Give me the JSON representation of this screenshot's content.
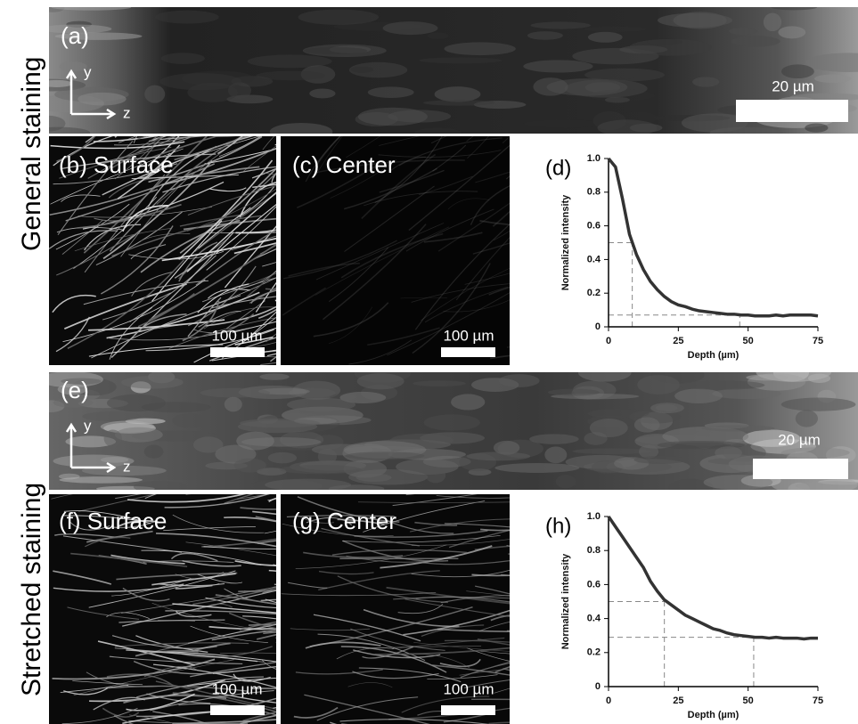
{
  "row_labels": [
    "General staining",
    "Stretched staining"
  ],
  "panels": {
    "a": {
      "label": "(a)",
      "axis_y": "y",
      "axis_z": "z",
      "scale_bar": "20 µm"
    },
    "b": {
      "label": "(b) Surface",
      "scale_bar": "100 µm"
    },
    "c": {
      "label": "(c) Center",
      "scale_bar": "100 µm"
    },
    "e": {
      "label": "(e)",
      "axis_y": "y",
      "axis_z": "z",
      "scale_bar": "20 µm"
    },
    "f": {
      "label": "(f) Surface",
      "scale_bar": "100 µm"
    },
    "g": {
      "label": "(g) Center",
      "scale_bar": "100 µm"
    }
  },
  "chart_data": [
    {
      "type": "line",
      "panel_label": "(d)",
      "xlabel": "Depth (µm)",
      "ylabel": "Normalized intensity",
      "color": "#333333",
      "x": [
        0,
        2.5,
        5,
        7.5,
        10,
        12.5,
        15,
        17.5,
        20,
        22.5,
        25,
        27.5,
        30,
        32.5,
        35,
        37.5,
        40,
        42.5,
        45,
        47.5,
        50,
        52.5,
        55,
        57.5,
        60,
        62.5,
        65,
        67.5,
        70,
        72.5,
        75
      ],
      "values": [
        1.0,
        0.95,
        0.76,
        0.55,
        0.43,
        0.34,
        0.27,
        0.22,
        0.18,
        0.15,
        0.13,
        0.12,
        0.105,
        0.095,
        0.09,
        0.085,
        0.08,
        0.075,
        0.075,
        0.07,
        0.07,
        0.065,
        0.065,
        0.065,
        0.07,
        0.065,
        0.07,
        0.07,
        0.07,
        0.07,
        0.065
      ],
      "guides": [
        {
          "x": 8.5,
          "y": 0.5
        },
        {
          "x": 47,
          "y": 0.07
        }
      ],
      "xlim": [
        0,
        75
      ],
      "ylim": [
        0,
        1
      ],
      "xticks": [
        0,
        25,
        50,
        75
      ],
      "yticks": [
        0,
        0.2,
        0.4,
        0.6,
        0.8,
        {
          "value": 1,
          "label": "1.0"
        }
      ]
    },
    {
      "type": "line",
      "panel_label": "(h)",
      "xlabel": "Depth (µm)",
      "ylabel": "Normalized intensity",
      "color": "#333333",
      "x": [
        0,
        2.5,
        5,
        7.5,
        10,
        12.5,
        15,
        17.5,
        20,
        22.5,
        25,
        27.5,
        30,
        32.5,
        35,
        37.5,
        40,
        42.5,
        45,
        47.5,
        50,
        52.5,
        55,
        57.5,
        60,
        62.5,
        65,
        67.5,
        70,
        72.5,
        75
      ],
      "values": [
        1.0,
        0.94,
        0.88,
        0.82,
        0.76,
        0.7,
        0.62,
        0.56,
        0.51,
        0.48,
        0.45,
        0.42,
        0.4,
        0.38,
        0.36,
        0.34,
        0.33,
        0.315,
        0.305,
        0.3,
        0.295,
        0.29,
        0.29,
        0.285,
        0.29,
        0.285,
        0.285,
        0.285,
        0.28,
        0.285,
        0.285
      ],
      "guides": [
        {
          "x": 20,
          "y": 0.5
        },
        {
          "x": 52,
          "y": 0.29
        }
      ],
      "xlim": [
        0,
        75
      ],
      "ylim": [
        0,
        1
      ],
      "xticks": [
        0,
        25,
        50,
        75
      ],
      "yticks": [
        0,
        0.2,
        0.4,
        0.6,
        0.8,
        {
          "value": 1,
          "label": "1.0"
        }
      ]
    }
  ]
}
